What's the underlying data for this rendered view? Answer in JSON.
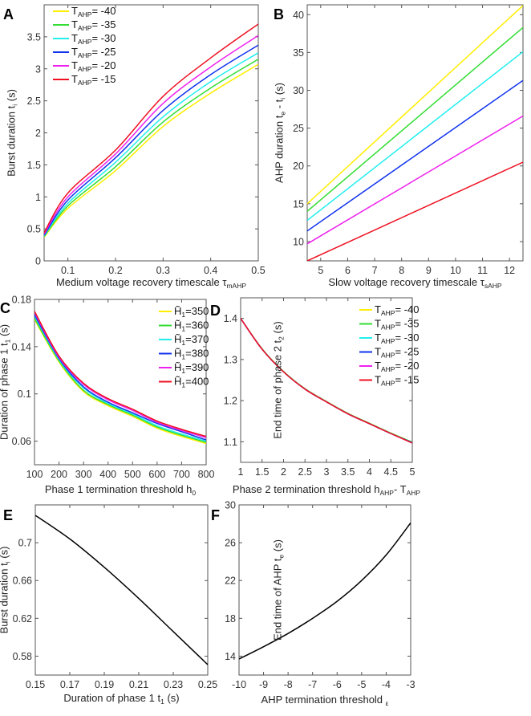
{
  "chart_data": [
    {
      "panel": "A",
      "type": "line",
      "xlabel": [
        {
          "t": "Medium voltage recovery timescale τ"
        },
        {
          "sub": "mAHP"
        }
      ],
      "ylabel": [
        {
          "t": "Burst duration t"
        },
        {
          "sub": "i"
        },
        {
          "t": " (s)"
        }
      ],
      "xlim": [
        0.05,
        0.5
      ],
      "ylim": [
        0,
        4
      ],
      "xticks": [
        {
          "v": 0.1,
          "l": "0.1"
        },
        {
          "v": 0.2,
          "l": "0.2"
        },
        {
          "v": 0.3,
          "l": "0.3"
        },
        {
          "v": 0.4,
          "l": "0.4"
        },
        {
          "v": 0.5,
          "l": "0.5"
        }
      ],
      "yticks": [
        {
          "v": 0,
          "l": "0"
        },
        {
          "v": 0.5,
          "l": "0.5"
        },
        {
          "v": 1,
          "l": "1"
        },
        {
          "v": 1.5,
          "l": "1.5"
        },
        {
          "v": 2,
          "l": "2"
        },
        {
          "v": 2.5,
          "l": "2.5"
        },
        {
          "v": 3,
          "l": "3"
        },
        {
          "v": 3.5,
          "l": "3.5"
        }
      ],
      "legend_placement": "top-left",
      "x": [
        0.05,
        0.1,
        0.2,
        0.3,
        0.4,
        0.5
      ],
      "series": [
        {
          "name": [
            {
              "t": "T"
            },
            {
              "sub": "AHP"
            },
            {
              "t": "= -40"
            }
          ],
          "color": "#ffee00",
          "values": [
            0.37,
            0.82,
            1.41,
            2.1,
            2.62,
            3.07
          ]
        },
        {
          "name": [
            {
              "t": "T"
            },
            {
              "sub": "AHP"
            },
            {
              "t": "= -35"
            }
          ],
          "color": "#33dd33",
          "values": [
            0.38,
            0.86,
            1.47,
            2.17,
            2.7,
            3.15
          ]
        },
        {
          "name": [
            {
              "t": "T"
            },
            {
              "sub": "AHP"
            },
            {
              "t": "= -30"
            }
          ],
          "color": "#22eeee",
          "values": [
            0.39,
            0.9,
            1.54,
            2.25,
            2.8,
            3.25
          ]
        },
        {
          "name": [
            {
              "t": "T"
            },
            {
              "sub": "AHP"
            },
            {
              "t": "= -25"
            }
          ],
          "color": "#1133ee",
          "values": [
            0.4,
            0.95,
            1.61,
            2.35,
            2.91,
            3.37
          ]
        },
        {
          "name": [
            {
              "t": "T"
            },
            {
              "sub": "AHP"
            },
            {
              "t": "= -20"
            }
          ],
          "color": "#ee22ee",
          "values": [
            0.42,
            1.0,
            1.67,
            2.46,
            3.03,
            3.52
          ]
        },
        {
          "name": [
            {
              "t": "T"
            },
            {
              "sub": "AHP"
            },
            {
              "t": "= -15"
            }
          ],
          "color": "#ee1122",
          "values": [
            0.44,
            1.06,
            1.73,
            2.57,
            3.17,
            3.7
          ]
        }
      ]
    },
    {
      "panel": "B",
      "type": "line",
      "xlabel": [
        {
          "t": "Slow voltage recovery timescale τ"
        },
        {
          "sub": "sAHP"
        }
      ],
      "ylabel": [
        {
          "t": "AHP duration t"
        },
        {
          "sub": "e"
        },
        {
          "t": " - t"
        },
        {
          "sub": "i"
        },
        {
          "t": " (s)"
        }
      ],
      "xlim": [
        4.5,
        12.5
      ],
      "ylim": [
        7.45,
        41.3
      ],
      "xticks": [
        {
          "v": 5,
          "l": "5"
        },
        {
          "v": 6,
          "l": "6"
        },
        {
          "v": 7,
          "l": "7"
        },
        {
          "v": 8,
          "l": "8"
        },
        {
          "v": 9,
          "l": "9"
        },
        {
          "v": 10,
          "l": "10"
        },
        {
          "v": 11,
          "l": "11"
        },
        {
          "v": 12,
          "l": "12"
        }
      ],
      "yticks": [
        {
          "v": 10,
          "l": "10"
        },
        {
          "v": 15,
          "l": "15"
        },
        {
          "v": 20,
          "l": "20"
        },
        {
          "v": 25,
          "l": "25"
        },
        {
          "v": 30,
          "l": "30"
        },
        {
          "v": 35,
          "l": "35"
        },
        {
          "v": 40,
          "l": "40"
        }
      ],
      "x": [
        4.5,
        12.5
      ],
      "series": [
        {
          "color": "#ffee00",
          "values": [
            15.0,
            41.2
          ]
        },
        {
          "color": "#33dd33",
          "values": [
            14.0,
            38.3
          ]
        },
        {
          "color": "#22eeee",
          "values": [
            12.8,
            35.1
          ]
        },
        {
          "color": "#1133ee",
          "values": [
            11.4,
            31.3
          ]
        },
        {
          "color": "#ee22ee",
          "values": [
            9.7,
            26.6
          ]
        },
        {
          "color": "#ee1122",
          "values": [
            7.45,
            20.5
          ]
        }
      ]
    },
    {
      "panel": "C",
      "type": "line",
      "xlabel": [
        {
          "t": "Phase 1 termination threshold h"
        },
        {
          "sub": "0"
        }
      ],
      "ylabel": [
        {
          "t": "Duration of phase 1 t"
        },
        {
          "sub": "1"
        },
        {
          "t": " (s)"
        }
      ],
      "xlim": [
        100,
        800
      ],
      "ylim": [
        0.04,
        0.18
      ],
      "xticks": [
        {
          "v": 100,
          "l": "100"
        },
        {
          "v": 200,
          "l": "200"
        },
        {
          "v": 300,
          "l": "300"
        },
        {
          "v": 400,
          "l": "400"
        },
        {
          "v": 500,
          "l": "500"
        },
        {
          "v": 600,
          "l": "600"
        },
        {
          "v": 700,
          "l": "700"
        },
        {
          "v": 800,
          "l": "800"
        }
      ],
      "yticks": [
        {
          "v": 0.06,
          "l": "0.06"
        },
        {
          "v": 0.1,
          "l": "0.1"
        },
        {
          "v": 0.14,
          "l": "0.14"
        },
        {
          "v": 0.18,
          "l": "0.18"
        }
      ],
      "legend_placement": "top-right",
      "x": [
        100,
        200,
        300,
        400,
        500,
        600,
        700,
        800
      ],
      "series": [
        {
          "name": [
            {
              "t": "H̃"
            },
            {
              "sub": "1"
            },
            {
              "t": "=350"
            }
          ],
          "color": "#ffee00",
          "values": [
            0.163,
            0.127,
            0.102,
            0.09,
            0.081,
            0.071,
            0.064,
            0.058
          ]
        },
        {
          "name": [
            {
              "t": "H̃"
            },
            {
              "sub": "1"
            },
            {
              "t": "=360"
            }
          ],
          "color": "#33dd33",
          "values": [
            0.164,
            0.128,
            0.103,
            0.091,
            0.082,
            0.072,
            0.065,
            0.059
          ]
        },
        {
          "name": [
            {
              "t": "H̃"
            },
            {
              "sub": "1"
            },
            {
              "t": "=370"
            }
          ],
          "color": "#22eeee",
          "values": [
            0.166,
            0.129,
            0.105,
            0.092,
            0.083,
            0.073,
            0.066,
            0.06
          ]
        },
        {
          "name": [
            {
              "t": "H̃"
            },
            {
              "sub": "1"
            },
            {
              "t": "=380"
            }
          ],
          "color": "#1133ee",
          "values": [
            0.167,
            0.13,
            0.106,
            0.093,
            0.084,
            0.075,
            0.068,
            0.061
          ]
        },
        {
          "name": [
            {
              "t": "H̃"
            },
            {
              "sub": "1"
            },
            {
              "t": "=390"
            }
          ],
          "color": "#ee22ee",
          "values": [
            0.169,
            0.131,
            0.108,
            0.095,
            0.086,
            0.076,
            0.069,
            0.063
          ]
        },
        {
          "name": [
            {
              "t": "H̃"
            },
            {
              "sub": "1"
            },
            {
              "t": "=400"
            }
          ],
          "color": "#ee1122",
          "values": [
            0.17,
            0.132,
            0.109,
            0.096,
            0.087,
            0.077,
            0.07,
            0.064
          ]
        }
      ]
    },
    {
      "panel": "D",
      "type": "line",
      "xlabel": [
        {
          "t": "Phase 2 termination threshold h"
        },
        {
          "sub": "AHP"
        },
        {
          "t": "- T"
        },
        {
          "sub": "AHP"
        }
      ],
      "ylabel": [
        {
          "t": "End time of phase 2 t"
        },
        {
          "sub": "2"
        },
        {
          "t": " (s)"
        }
      ],
      "xlim": [
        1,
        5
      ],
      "ylim": [
        1.05,
        1.45
      ],
      "xticks": [
        {
          "v": 1,
          "l": "1"
        },
        {
          "v": 1.5,
          "l": "1.5"
        },
        {
          "v": 2,
          "l": "2"
        },
        {
          "v": 2.5,
          "l": "2.5"
        },
        {
          "v": 3,
          "l": "3"
        },
        {
          "v": 3.5,
          "l": "3.5"
        },
        {
          "v": 4,
          "l": "4"
        },
        {
          "v": 4.5,
          "l": "4.5"
        },
        {
          "v": 5,
          "l": "5"
        }
      ],
      "yticks": [
        {
          "v": 1.1,
          "l": "1.1"
        },
        {
          "v": 1.2,
          "l": "1.2"
        },
        {
          "v": 1.3,
          "l": "1.3"
        },
        {
          "v": 1.4,
          "l": "1.4"
        }
      ],
      "legend_placement": "top-right",
      "x": [
        1,
        1.5,
        2,
        2.5,
        3,
        3.5,
        4,
        4.5,
        5
      ],
      "series": [
        {
          "name": [
            {
              "t": "T"
            },
            {
              "sub": "AHP"
            },
            {
              "t": "= -40"
            }
          ],
          "color": "#ffee00",
          "values": [
            1.4,
            1.326,
            1.271,
            1.229,
            1.198,
            1.169,
            1.145,
            1.121,
            1.099
          ]
        },
        {
          "name": [
            {
              "t": "T"
            },
            {
              "sub": "AHP"
            },
            {
              "t": "= -35"
            }
          ],
          "color": "#33dd33",
          "values": [
            1.4,
            1.326,
            1.271,
            1.229,
            1.198,
            1.169,
            1.145,
            1.121,
            1.099
          ]
        },
        {
          "name": [
            {
              "t": "T"
            },
            {
              "sub": "AHP"
            },
            {
              "t": "= -30"
            }
          ],
          "color": "#22eeee",
          "values": [
            1.4,
            1.325,
            1.27,
            1.228,
            1.197,
            1.168,
            1.144,
            1.12,
            1.098
          ]
        },
        {
          "name": [
            {
              "t": "T"
            },
            {
              "sub": "AHP"
            },
            {
              "t": "= -25"
            }
          ],
          "color": "#1133ee",
          "values": [
            1.4,
            1.325,
            1.27,
            1.228,
            1.197,
            1.168,
            1.144,
            1.12,
            1.098
          ]
        },
        {
          "name": [
            {
              "t": "T"
            },
            {
              "sub": "AHP"
            },
            {
              "t": "= -20"
            }
          ],
          "color": "#ee22ee",
          "values": [
            1.4,
            1.325,
            1.27,
            1.228,
            1.197,
            1.168,
            1.144,
            1.12,
            1.097
          ]
        },
        {
          "name": [
            {
              "t": "T"
            },
            {
              "sub": "AHP"
            },
            {
              "t": "= -15"
            }
          ],
          "color": "#ee1122",
          "values": [
            1.4,
            1.325,
            1.27,
            1.228,
            1.197,
            1.168,
            1.144,
            1.12,
            1.097
          ]
        }
      ]
    },
    {
      "panel": "E",
      "type": "line",
      "xlabel": [
        {
          "t": "Duration of phase 1 t"
        },
        {
          "sub": "1"
        },
        {
          "t": " (s)"
        }
      ],
      "ylabel": [
        {
          "t": "Burst duration t"
        },
        {
          "sub": "i"
        },
        {
          "t": " (s)"
        }
      ],
      "xlim": [
        0.15,
        0.25
      ],
      "ylim": [
        0.56,
        0.74
      ],
      "xticks": [
        {
          "v": 0.15,
          "l": "0.15"
        },
        {
          "v": 0.17,
          "l": "0.17"
        },
        {
          "v": 0.19,
          "l": "0.19"
        },
        {
          "v": 0.21,
          "l": "0.21"
        },
        {
          "v": 0.23,
          "l": "0.23"
        },
        {
          "v": 0.25,
          "l": "0.25"
        }
      ],
      "yticks": [
        {
          "v": 0.58,
          "l": "0.58"
        },
        {
          "v": 0.62,
          "l": "0.62"
        },
        {
          "v": 0.66,
          "l": "0.66"
        },
        {
          "v": 0.7,
          "l": "0.7"
        }
      ],
      "x": [
        0.15,
        0.17,
        0.19,
        0.21,
        0.23,
        0.25
      ],
      "series": [
        {
          "color": "#000000",
          "values": [
            0.729,
            0.704,
            0.674,
            0.641,
            0.606,
            0.571
          ]
        }
      ]
    },
    {
      "panel": "F",
      "type": "line",
      "xlabel": [
        {
          "t": "AHP termination threshold "
        },
        {
          "sub": "ε"
        }
      ],
      "ylabel": [
        {
          "t": "End time of AHP t"
        },
        {
          "sub": "e"
        },
        {
          "t": " (s)"
        }
      ],
      "xlim": [
        -10,
        -3
      ],
      "ylim": [
        12,
        30
      ],
      "xticks": [
        {
          "v": -10,
          "l": "-10"
        },
        {
          "v": -9,
          "l": "-9"
        },
        {
          "v": -8,
          "l": "-8"
        },
        {
          "v": -7,
          "l": "-7"
        },
        {
          "v": -6,
          "l": "-6"
        },
        {
          "v": -5,
          "l": "-5"
        },
        {
          "v": -4,
          "l": "-4"
        },
        {
          "v": -3,
          "l": "-3"
        }
      ],
      "yticks": [
        {
          "v": 14,
          "l": "14"
        },
        {
          "v": 18,
          "l": "18"
        },
        {
          "v": 22,
          "l": "22"
        },
        {
          "v": 26,
          "l": "26"
        },
        {
          "v": 30,
          "l": "30"
        }
      ],
      "x": [
        -10,
        -9,
        -8,
        -7,
        -6,
        -5,
        -4,
        -3
      ],
      "series": [
        {
          "color": "#000000",
          "values": [
            13.7,
            15.0,
            16.4,
            18.0,
            19.8,
            22.0,
            24.7,
            28.1
          ]
        }
      ]
    }
  ]
}
